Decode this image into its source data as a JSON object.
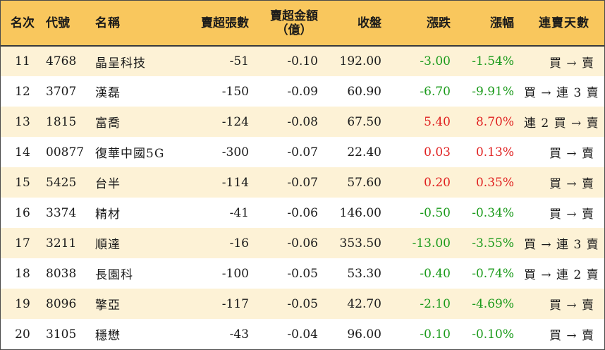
{
  "headers": {
    "rank": "名次",
    "code": "代號",
    "name": "名稱",
    "net_lots": "賣超張數",
    "net_amount_line1": "賣超金額",
    "net_amount_line2": "（億）",
    "close": "收盤",
    "change": "漲跌",
    "change_pct": "漲幅",
    "streak": "連賣天數"
  },
  "colors": {
    "header_bg": "#f9c75d",
    "row_alt_bg": "#fdf2d6",
    "up": "#e02020",
    "down": "#1a9a1a"
  },
  "rows": [
    {
      "rank": "11",
      "code": "4768",
      "name": "晶呈科技",
      "net_lots": "-51",
      "net_amount": "-0.10",
      "close": "192.00",
      "change": "-3.00",
      "change_pct": "-1.54%",
      "dir": "down",
      "streak": "買 → 賣"
    },
    {
      "rank": "12",
      "code": "3707",
      "name": "漢磊",
      "net_lots": "-150",
      "net_amount": "-0.09",
      "close": "60.90",
      "change": "-6.70",
      "change_pct": "-9.91%",
      "dir": "down",
      "streak": "買 → 連 3 賣"
    },
    {
      "rank": "13",
      "code": "1815",
      "name": "富喬",
      "net_lots": "-124",
      "net_amount": "-0.08",
      "close": "67.50",
      "change": "5.40",
      "change_pct": "8.70%",
      "dir": "up",
      "streak": "連 2 買 → 賣"
    },
    {
      "rank": "14",
      "code": "00877",
      "name": "復華中國5G",
      "net_lots": "-300",
      "net_amount": "-0.07",
      "close": "22.40",
      "change": "0.03",
      "change_pct": "0.13%",
      "dir": "up",
      "streak": "買 → 賣"
    },
    {
      "rank": "15",
      "code": "5425",
      "name": "台半",
      "net_lots": "-114",
      "net_amount": "-0.07",
      "close": "57.60",
      "change": "0.20",
      "change_pct": "0.35%",
      "dir": "up",
      "streak": "買 → 賣"
    },
    {
      "rank": "16",
      "code": "3374",
      "name": "精材",
      "net_lots": "-41",
      "net_amount": "-0.06",
      "close": "146.00",
      "change": "-0.50",
      "change_pct": "-0.34%",
      "dir": "down",
      "streak": "買 → 賣"
    },
    {
      "rank": "17",
      "code": "3211",
      "name": "順達",
      "net_lots": "-16",
      "net_amount": "-0.06",
      "close": "353.50",
      "change": "-13.00",
      "change_pct": "-3.55%",
      "dir": "down",
      "streak": "買 → 連 3 賣"
    },
    {
      "rank": "18",
      "code": "8038",
      "name": "長園科",
      "net_lots": "-100",
      "net_amount": "-0.05",
      "close": "53.30",
      "change": "-0.40",
      "change_pct": "-0.74%",
      "dir": "down",
      "streak": "買 → 連 2 賣"
    },
    {
      "rank": "19",
      "code": "8096",
      "name": "擎亞",
      "net_lots": "-117",
      "net_amount": "-0.05",
      "close": "42.70",
      "change": "-2.10",
      "change_pct": "-4.69%",
      "dir": "down",
      "streak": "買 → 賣"
    },
    {
      "rank": "20",
      "code": "3105",
      "name": "穩懋",
      "net_lots": "-43",
      "net_amount": "-0.04",
      "close": "96.00",
      "change": "-0.10",
      "change_pct": "-0.10%",
      "dir": "down",
      "streak": "買 → 賣"
    }
  ]
}
